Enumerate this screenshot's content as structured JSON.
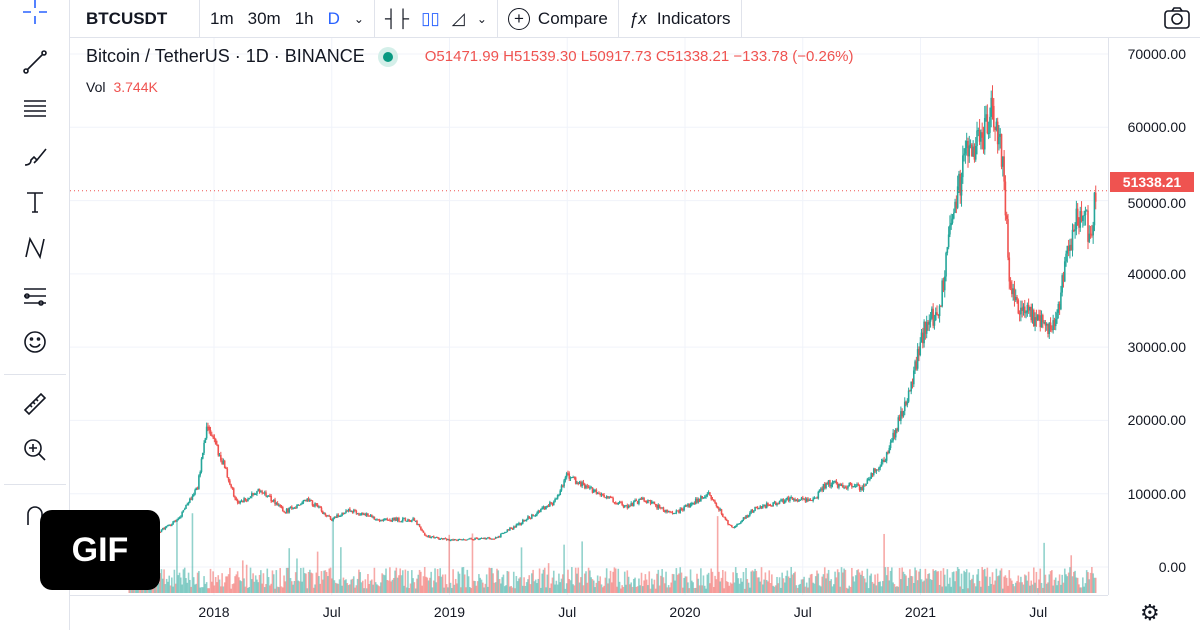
{
  "toolbar": {
    "symbol": "BTCUSDT",
    "intervals": [
      "1m",
      "30m",
      "1h",
      "D"
    ],
    "active_interval": "D",
    "compare": "Compare",
    "indicators": "Indicators"
  },
  "legend": {
    "title": "Bitcoin / TetherUS · 1D · BINANCE",
    "open": "O51471.99",
    "high": "H51539.30",
    "low": "L50917.73",
    "close": "C51338.21",
    "change": "−133.78 (−0.26%)",
    "vol_label": "Vol",
    "vol_value": "3.744K"
  },
  "badge": "GIF",
  "colors": {
    "up": "#26a69a",
    "down": "#ef5350",
    "accent": "#2962ff"
  },
  "chart_data": {
    "type": "candlestick",
    "title": "Bitcoin / TetherUS · 1D · BINANCE",
    "last_price": "51338.21",
    "y_ticks": [
      "70000.00",
      "60000.00",
      "50000.00",
      "40000.00",
      "30000.00",
      "20000.00",
      "10000.00",
      "0.00"
    ],
    "ylim": [
      0,
      70000
    ],
    "x_ticks": [
      {
        "t": 2018.0,
        "label": "2018"
      },
      {
        "t": 2018.5,
        "label": "Jul"
      },
      {
        "t": 2019.0,
        "label": "2019"
      },
      {
        "t": 2019.5,
        "label": "Jul"
      },
      {
        "t": 2020.0,
        "label": "2020"
      },
      {
        "t": 2020.5,
        "label": "Jul"
      },
      {
        "t": 2021.0,
        "label": "2021"
      },
      {
        "t": 2021.5,
        "label": "Jul"
      }
    ],
    "xlim": [
      2017.6,
      2021.75
    ],
    "price_path": [
      [
        2017.64,
        4300
      ],
      [
        2017.75,
        4500
      ],
      [
        2017.85,
        6500
      ],
      [
        2017.93,
        11000
      ],
      [
        2017.97,
        19000
      ],
      [
        2018.03,
        15000
      ],
      [
        2018.1,
        8500
      ],
      [
        2018.2,
        10500
      ],
      [
        2018.3,
        7500
      ],
      [
        2018.4,
        9200
      ],
      [
        2018.5,
        6500
      ],
      [
        2018.58,
        7800
      ],
      [
        2018.7,
        6500
      ],
      [
        2018.85,
        6400
      ],
      [
        2018.9,
        4200
      ],
      [
        2019.0,
        3700
      ],
      [
        2019.2,
        4000
      ],
      [
        2019.35,
        7000
      ],
      [
        2019.45,
        9000
      ],
      [
        2019.5,
        12500
      ],
      [
        2019.6,
        10500
      ],
      [
        2019.75,
        8200
      ],
      [
        2019.82,
        9300
      ],
      [
        2019.95,
        7200
      ],
      [
        2020.1,
        10000
      ],
      [
        2020.2,
        5200
      ],
      [
        2020.3,
        8000
      ],
      [
        2020.45,
        9300
      ],
      [
        2020.55,
        9200
      ],
      [
        2020.6,
        11500
      ],
      [
        2020.75,
        10800
      ],
      [
        2020.85,
        15000
      ],
      [
        2020.95,
        23500
      ],
      [
        2021.02,
        33000
      ],
      [
        2021.08,
        35000
      ],
      [
        2021.13,
        47000
      ],
      [
        2021.2,
        57000
      ],
      [
        2021.26,
        58000
      ],
      [
        2021.3,
        63000
      ],
      [
        2021.35,
        56000
      ],
      [
        2021.38,
        37000
      ],
      [
        2021.45,
        35000
      ],
      [
        2021.55,
        32000
      ],
      [
        2021.58,
        34000
      ],
      [
        2021.62,
        42000
      ],
      [
        2021.66,
        47000
      ],
      [
        2021.7,
        49000
      ],
      [
        2021.72,
        44000
      ],
      [
        2021.745,
        51338
      ]
    ]
  }
}
